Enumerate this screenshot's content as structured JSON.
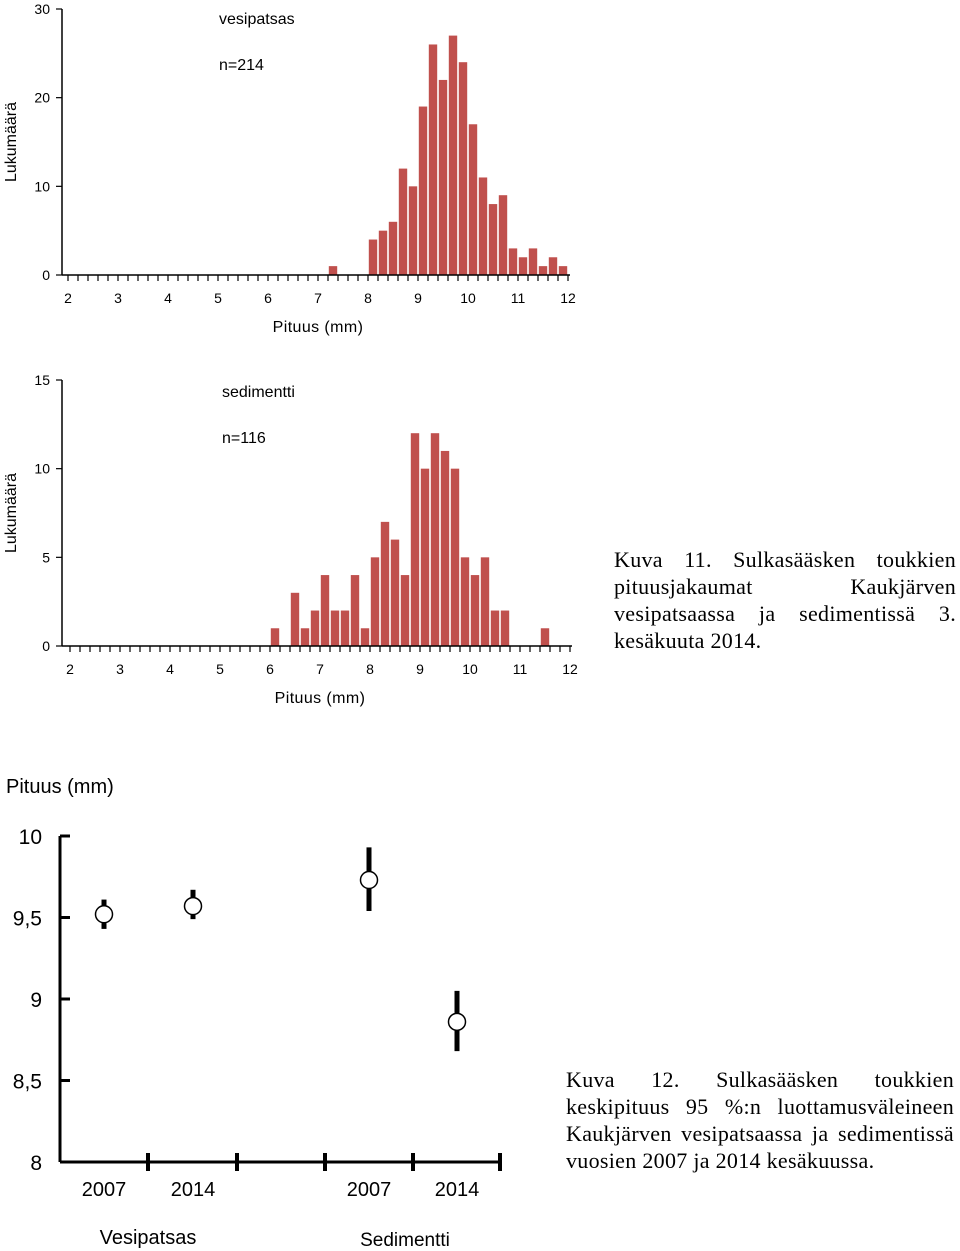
{
  "chart_data": [
    {
      "type": "bar",
      "title": "vesipatsas",
      "subtitle": "n=214",
      "xlabel": "Pituus (mm)",
      "ylabel": "Lukumäärä",
      "xlim": [
        2,
        12
      ],
      "ylim": [
        0,
        30
      ],
      "yticks": [
        "0",
        "10",
        "20",
        "30"
      ],
      "xticks": [
        "2",
        "3",
        "4",
        "5",
        "6",
        "7",
        "8",
        "9",
        "10",
        "11",
        "12"
      ],
      "bin_width": 0.2,
      "color": "#c0504d",
      "x": [
        7.2,
        8.0,
        8.2,
        8.4,
        8.6,
        8.8,
        9.0,
        9.2,
        9.4,
        9.6,
        9.8,
        10.0,
        10.2,
        10.4,
        10.6,
        10.8,
        11.0,
        11.2,
        11.4,
        11.6,
        11.8
      ],
      "values": [
        1,
        4,
        5,
        6,
        12,
        10,
        19,
        26,
        22,
        27,
        24,
        17,
        11,
        8,
        9,
        3,
        2,
        3,
        1,
        2,
        1
      ]
    },
    {
      "type": "bar",
      "title": "sedimentti",
      "subtitle": "n=116",
      "xlabel": "Pituus (mm)",
      "ylabel": "Lukumäärä",
      "xlim": [
        2,
        12
      ],
      "ylim": [
        0,
        15
      ],
      "yticks": [
        "0",
        "5",
        "10",
        "15"
      ],
      "xticks": [
        "2",
        "3",
        "4",
        "5",
        "6",
        "7",
        "8",
        "9",
        "10",
        "11",
        "12"
      ],
      "bin_width": 0.2,
      "color": "#c0504d",
      "x": [
        6.0,
        6.4,
        6.6,
        6.8,
        7.0,
        7.2,
        7.4,
        7.6,
        7.8,
        8.0,
        8.2,
        8.4,
        8.6,
        8.8,
        9.0,
        9.2,
        9.4,
        9.6,
        9.8,
        10.0,
        10.2,
        10.4,
        10.6,
        11.4
      ],
      "values": [
        1,
        3,
        1,
        2,
        4,
        2,
        2,
        4,
        1,
        5,
        7,
        6,
        4,
        12,
        10,
        12,
        11,
        10,
        5,
        4,
        5,
        2,
        2,
        1
      ]
    },
    {
      "type": "scatter",
      "title": "",
      "ylabel": "Pituus (mm)",
      "ylim": [
        8,
        10
      ],
      "yticks": [
        "8",
        "8,5",
        "9",
        "9,5",
        "10"
      ],
      "categories": [
        "2007",
        "2014",
        "2007",
        "2014"
      ],
      "groups": [
        "Vesipatsas",
        "Sedimentti"
      ],
      "means": [
        9.52,
        9.57,
        9.73,
        8.86
      ],
      "ci_low": [
        9.43,
        9.49,
        9.54,
        8.68
      ],
      "ci_high": [
        9.61,
        9.67,
        9.93,
        9.05
      ]
    }
  ],
  "captions": {
    "fig11": "Kuva 11. Sulkasääsken toukkien pituusjakaumat Kaukjärven vesipatsaassa ja sedimentissä 3. kesäkuuta 2014.",
    "fig12": "Kuva 12. Sulkasääsken toukkien keskipituus 95 %:n luottamusväleineen Kaukjärven vesipatsaassa ja sedimentissä vuosien 2007 ja 2014 kesäkuussa."
  }
}
